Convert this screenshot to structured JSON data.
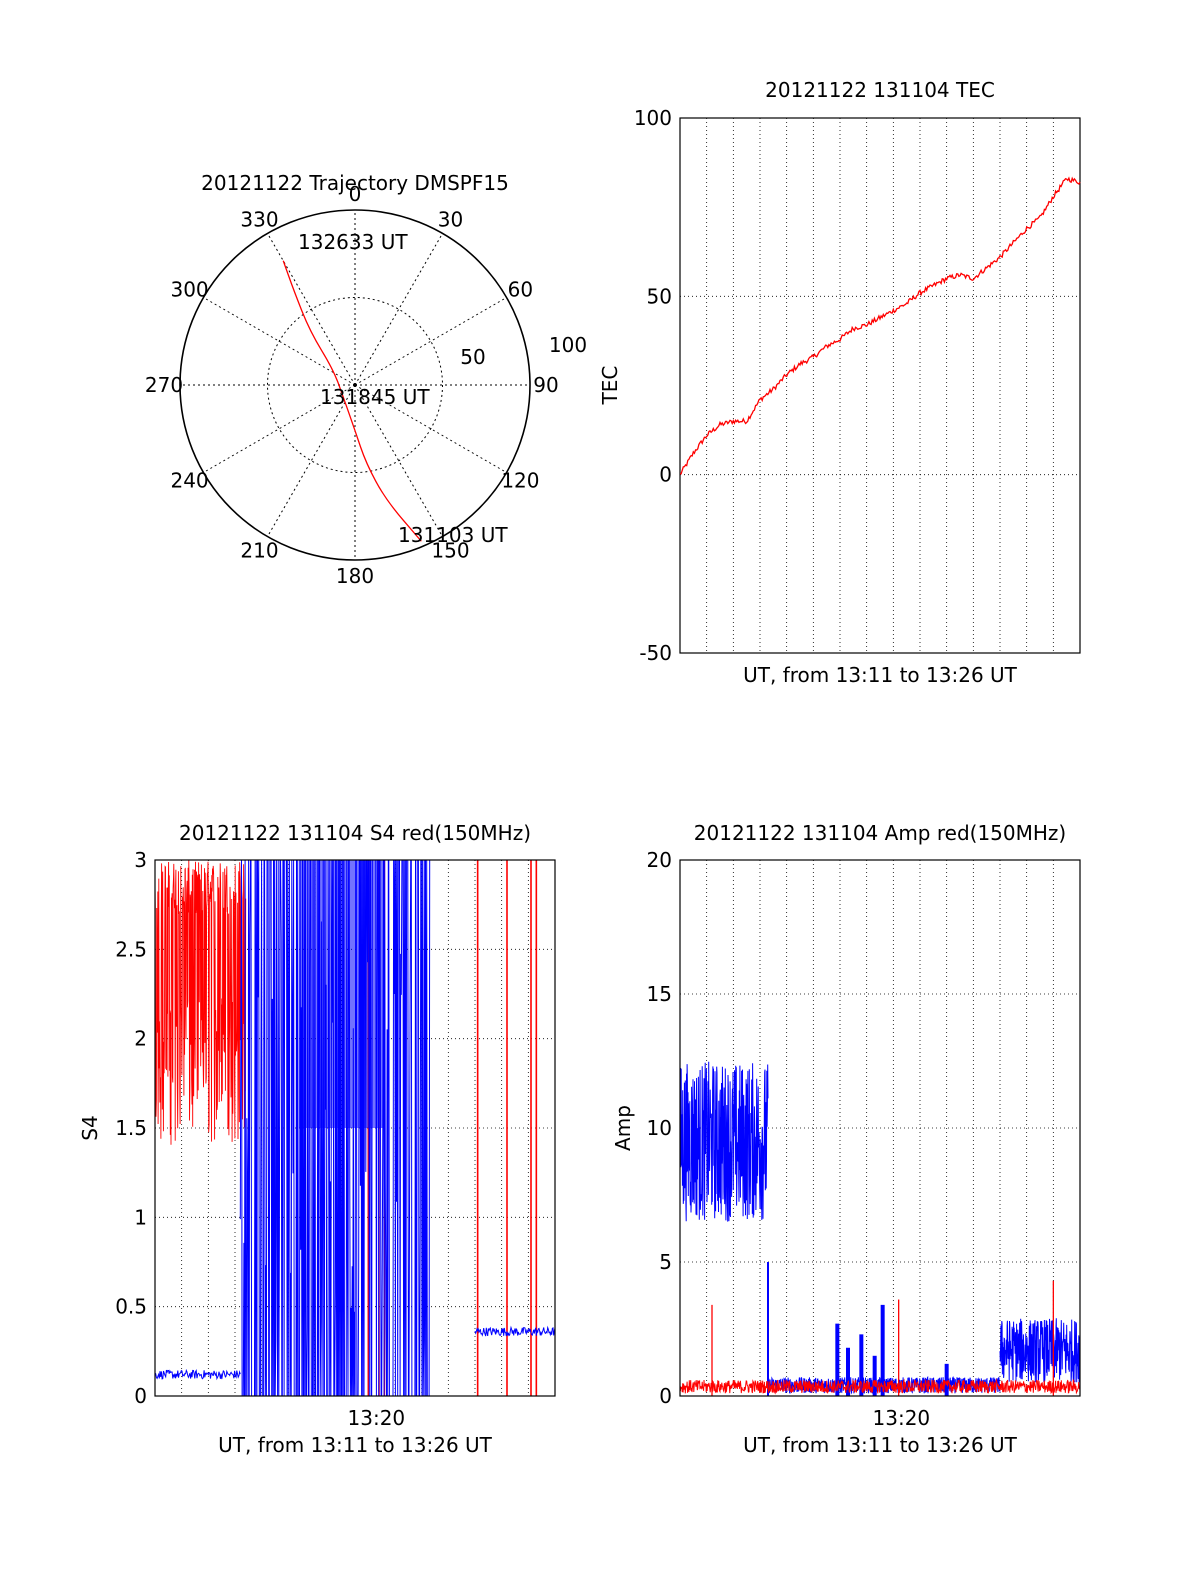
{
  "colors": {
    "red": "#ff0000",
    "blue": "#0000ff",
    "axis": "#000000",
    "grid": "#000000",
    "background": "#ffffff"
  },
  "chart_data": [
    {
      "type": "polar",
      "title": "20121122 Trajectory DMSPF15",
      "azimuth_tick_labels": [
        "0",
        "30",
        "60",
        "90",
        "120",
        "150",
        "180",
        "210",
        "240",
        "270",
        "300",
        "330"
      ],
      "radial_tick_labels": [
        "50",
        "100"
      ],
      "radial_range": [
        0,
        100
      ],
      "grid": true,
      "annotations": [
        "132633 UT",
        "131845 UT",
        "131103 UT"
      ],
      "series": [
        {
          "color": "#ff0000",
          "points": [
            {
              "az": 157,
              "r": 97
            },
            {
              "az": 165,
              "r": 68
            },
            {
              "az": 172,
              "r": 45
            },
            {
              "az": 180,
              "r": 26
            },
            {
              "az": 220,
              "r": 10
            },
            {
              "az": 305,
              "r": 15
            },
            {
              "az": 320,
              "r": 40
            },
            {
              "az": 327,
              "r": 64
            },
            {
              "az": 330,
              "r": 82
            }
          ]
        }
      ]
    },
    {
      "type": "line",
      "title": "20121122 131104 TEC",
      "xlabel": "UT, from 13:11 to 13:26 UT",
      "ylabel": "TEC",
      "xlim": [
        0,
        15
      ],
      "ylim": [
        -50,
        100
      ],
      "yticks": [
        "-50",
        "0",
        "50",
        "100"
      ],
      "grid": true,
      "series": [
        {
          "color": "#ff0000",
          "x": [
            0,
            0.5,
            1,
            1.5,
            2,
            2.5,
            3,
            3.5,
            4,
            4.5,
            5,
            5.5,
            6,
            6.5,
            7,
            7.5,
            8,
            8.5,
            9,
            9.5,
            10,
            10.5,
            11,
            11.5,
            12,
            12.5,
            13,
            13.5,
            14,
            14.5,
            15
          ],
          "y": [
            0,
            6,
            11,
            14,
            15,
            15,
            21,
            24,
            28,
            31,
            33,
            36,
            38,
            41,
            42,
            44,
            46,
            48,
            51,
            53,
            55,
            56,
            55,
            58,
            61,
            65,
            69,
            72,
            78,
            83,
            82
          ]
        }
      ]
    },
    {
      "type": "line",
      "title": "20121122 131104 S4 red(150MHz)",
      "xlabel": "UT, from 13:11 to 13:26 UT",
      "ylabel": "S4",
      "xlim": [
        0,
        15
      ],
      "ylim": [
        0,
        3
      ],
      "yticks": [
        "0",
        "0.5",
        "1",
        "1.5",
        "2",
        "2.5",
        "3"
      ],
      "xticklabels": [
        {
          "x": 8.3,
          "label": "13:20"
        }
      ],
      "grid": true,
      "series": [
        {
          "color": "#ff0000",
          "note_shape": "dense oscillation filling 1.4–3 from 0 to 3.4 min; isolated full-height spikes later",
          "spikes_x": [
            8.0,
            8.4,
            8.6,
            12.1,
            13.2,
            14.1,
            14.3
          ]
        },
        {
          "color": "#0000ff",
          "baseline_segments": [
            {
              "x": [
                0,
                3.2
              ],
              "y": 0.12
            },
            {
              "x": [
                12.0,
                15
              ],
              "y": 0.36
            }
          ],
          "dense_region_x": [
            3.2,
            10.3
          ]
        }
      ]
    },
    {
      "type": "line",
      "title": "20121122 131104 Amp red(150MHz)",
      "xlabel": "UT, from 13:11 to 13:26 UT",
      "ylabel": "Amp",
      "xlim": [
        0,
        15
      ],
      "ylim": [
        0,
        20
      ],
      "yticks": [
        "0",
        "5",
        "10",
        "15",
        "20"
      ],
      "xticklabels": [
        {
          "x": 8.3,
          "label": "13:20"
        }
      ],
      "grid": true,
      "series": [
        {
          "color": "#0000ff",
          "segments": [
            {
              "x": [
                0,
                3.3
              ],
              "mean": 9.5,
              "spread": 3.0
            },
            {
              "x": [
                3.3,
                12.0
              ],
              "mean": 0.4,
              "spread": 0.3
            },
            {
              "x": [
                12.0,
                15
              ],
              "mean": 1.7,
              "spread": 1.2
            }
          ],
          "bursts": [
            {
              "x": 5.9,
              "peak": 2.7
            },
            {
              "x": 6.3,
              "peak": 1.8
            },
            {
              "x": 6.8,
              "peak": 2.3
            },
            {
              "x": 7.6,
              "peak": 3.4
            },
            {
              "x": 7.3,
              "peak": 1.5
            },
            {
              "x": 10.0,
              "peak": 1.2
            }
          ]
        },
        {
          "color": "#ff0000",
          "mean": 0.35,
          "spread": 0.25,
          "spikes": [
            {
              "x": 1.2,
              "peak": 3.4
            },
            {
              "x": 8.2,
              "peak": 3.6
            },
            {
              "x": 14.0,
              "peak": 4.3
            }
          ]
        }
      ]
    }
  ]
}
